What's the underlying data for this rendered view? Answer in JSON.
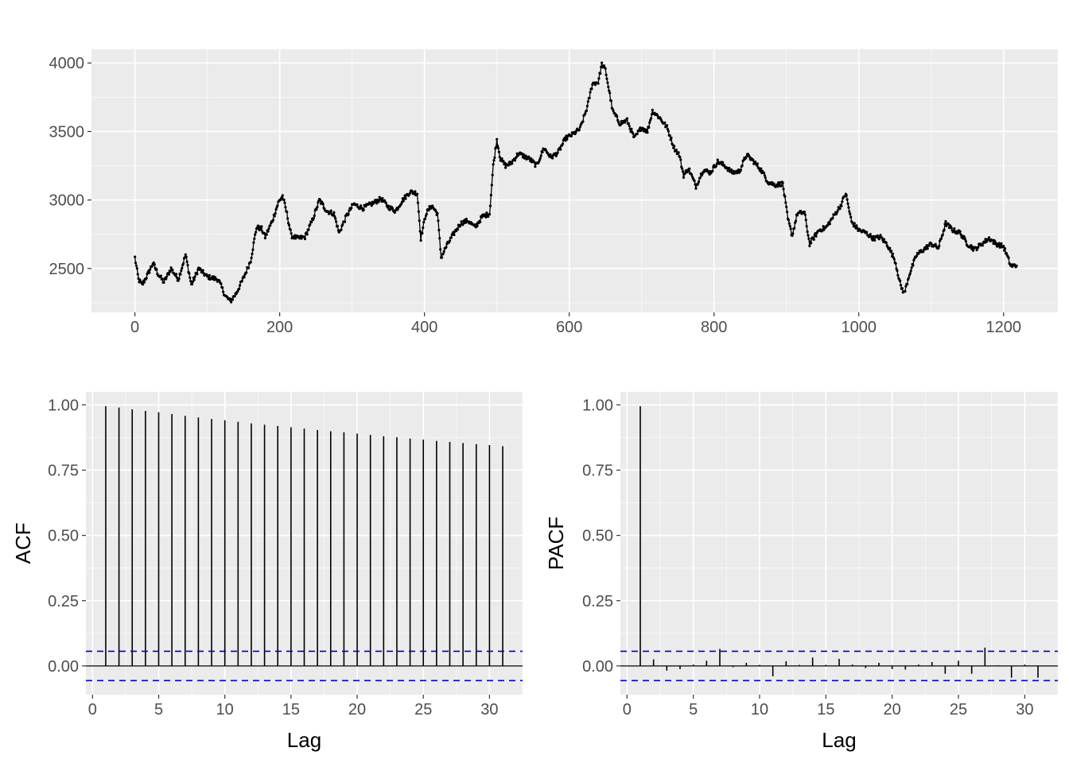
{
  "chart_data": [
    {
      "type": "line",
      "title": "",
      "xlabel": "",
      "ylabel": "",
      "xlim": [
        -60,
        1275
      ],
      "ylim": [
        2180,
        4100
      ],
      "x_ticks": [
        0,
        200,
        400,
        600,
        800,
        1000,
        1200
      ],
      "x_tick_labels": [
        "0",
        "200",
        "400",
        "600",
        "800",
        "1000",
        "1200"
      ],
      "y_ticks": [
        2500,
        3000,
        3500,
        4000
      ],
      "y_tick_labels": [
        "2500",
        "3000",
        "3500",
        "4000"
      ],
      "grid": true,
      "markers": true,
      "series": [
        {
          "anchors": [
            [
              0,
              2580
            ],
            [
              5,
              2420
            ],
            [
              10,
              2380
            ],
            [
              18,
              2460
            ],
            [
              25,
              2540
            ],
            [
              32,
              2460
            ],
            [
              40,
              2400
            ],
            [
              50,
              2500
            ],
            [
              60,
              2420
            ],
            [
              70,
              2600
            ],
            [
              78,
              2380
            ],
            [
              88,
              2500
            ],
            [
              100,
              2440
            ],
            [
              115,
              2420
            ],
            [
              125,
              2300
            ],
            [
              132,
              2260
            ],
            [
              140,
              2320
            ],
            [
              150,
              2430
            ],
            [
              160,
              2560
            ],
            [
              168,
              2800
            ],
            [
              175,
              2790
            ],
            [
              180,
              2730
            ],
            [
              190,
              2850
            ],
            [
              198,
              2980
            ],
            [
              204,
              3030
            ],
            [
              210,
              2900
            ],
            [
              216,
              2740
            ],
            [
              225,
              2720
            ],
            [
              235,
              2730
            ],
            [
              245,
              2850
            ],
            [
              255,
              3000
            ],
            [
              265,
              2920
            ],
            [
              275,
              2900
            ],
            [
              282,
              2760
            ],
            [
              292,
              2880
            ],
            [
              302,
              2970
            ],
            [
              315,
              2940
            ],
            [
              330,
              2980
            ],
            [
              340,
              3010
            ],
            [
              350,
              2950
            ],
            [
              360,
              2920
            ],
            [
              370,
              3000
            ],
            [
              380,
              3060
            ],
            [
              390,
              3050
            ],
            [
              395,
              2720
            ],
            [
              402,
              2900
            ],
            [
              410,
              2960
            ],
            [
              418,
              2900
            ],
            [
              423,
              2580
            ],
            [
              430,
              2660
            ],
            [
              440,
              2750
            ],
            [
              450,
              2830
            ],
            [
              460,
              2850
            ],
            [
              470,
              2800
            ],
            [
              480,
              2880
            ],
            [
              490,
              2900
            ],
            [
              495,
              3250
            ],
            [
              500,
              3440
            ],
            [
              505,
              3300
            ],
            [
              512,
              3250
            ],
            [
              520,
              3270
            ],
            [
              530,
              3340
            ],
            [
              545,
              3300
            ],
            [
              555,
              3250
            ],
            [
              565,
              3380
            ],
            [
              575,
              3310
            ],
            [
              585,
              3350
            ],
            [
              595,
              3450
            ],
            [
              605,
              3480
            ],
            [
              615,
              3520
            ],
            [
              625,
              3680
            ],
            [
              632,
              3850
            ],
            [
              640,
              3860
            ],
            [
              645,
              3990
            ],
            [
              650,
              3950
            ],
            [
              655,
              3800
            ],
            [
              660,
              3650
            ],
            [
              670,
              3560
            ],
            [
              680,
              3580
            ],
            [
              690,
              3450
            ],
            [
              700,
              3530
            ],
            [
              708,
              3500
            ],
            [
              715,
              3650
            ],
            [
              725,
              3600
            ],
            [
              735,
              3530
            ],
            [
              745,
              3380
            ],
            [
              752,
              3330
            ],
            [
              758,
              3180
            ],
            [
              765,
              3230
            ],
            [
              775,
              3100
            ],
            [
              785,
              3220
            ],
            [
              795,
              3200
            ],
            [
              805,
              3280
            ],
            [
              815,
              3250
            ],
            [
              825,
              3200
            ],
            [
              835,
              3210
            ],
            [
              845,
              3330
            ],
            [
              855,
              3280
            ],
            [
              865,
              3220
            ],
            [
              875,
              3130
            ],
            [
              885,
              3110
            ],
            [
              895,
              3120
            ],
            [
              902,
              2860
            ],
            [
              908,
              2740
            ],
            [
              915,
              2900
            ],
            [
              925,
              2910
            ],
            [
              932,
              2680
            ],
            [
              945,
              2780
            ],
            [
              955,
              2800
            ],
            [
              965,
              2880
            ],
            [
              975,
              2960
            ],
            [
              982,
              3050
            ],
            [
              990,
              2840
            ],
            [
              1000,
              2780
            ],
            [
              1010,
              2760
            ],
            [
              1020,
              2720
            ],
            [
              1030,
              2730
            ],
            [
              1040,
              2670
            ],
            [
              1050,
              2560
            ],
            [
              1058,
              2370
            ],
            [
              1063,
              2320
            ],
            [
              1070,
              2460
            ],
            [
              1080,
              2600
            ],
            [
              1090,
              2640
            ],
            [
              1100,
              2680
            ],
            [
              1110,
              2650
            ],
            [
              1120,
              2830
            ],
            [
              1130,
              2780
            ],
            [
              1140,
              2760
            ],
            [
              1150,
              2680
            ],
            [
              1160,
              2640
            ],
            [
              1170,
              2680
            ],
            [
              1180,
              2720
            ],
            [
              1190,
              2680
            ],
            [
              1200,
              2660
            ],
            [
              1210,
              2520
            ],
            [
              1218,
              2520
            ]
          ]
        }
      ]
    },
    {
      "type": "bar",
      "title": "",
      "xlabel": "Lag",
      "ylabel": "ACF",
      "xlim": [
        -0.5,
        32.5
      ],
      "ylim": [
        -0.11,
        1.05
      ],
      "x_ticks": [
        0,
        5,
        10,
        15,
        20,
        25,
        30
      ],
      "x_tick_labels": [
        "0",
        "5",
        "10",
        "15",
        "20",
        "25",
        "30"
      ],
      "y_ticks": [
        0,
        0.25,
        0.5,
        0.75,
        1
      ],
      "y_tick_labels": [
        "0.00",
        "0.25",
        "0.50",
        "0.75",
        "1.00"
      ],
      "confidence_bound": 0.056,
      "confidence_color": "#0000cc",
      "lags": [
        1,
        2,
        3,
        4,
        5,
        6,
        7,
        8,
        9,
        10,
        11,
        12,
        13,
        14,
        15,
        16,
        17,
        18,
        19,
        20,
        21,
        22,
        23,
        24,
        25,
        26,
        27,
        28,
        29,
        30,
        31
      ],
      "values": [
        0.995,
        0.99,
        0.983,
        0.977,
        0.972,
        0.965,
        0.958,
        0.952,
        0.946,
        0.941,
        0.935,
        0.929,
        0.924,
        0.919,
        0.914,
        0.909,
        0.904,
        0.899,
        0.895,
        0.89,
        0.885,
        0.88,
        0.876,
        0.871,
        0.867,
        0.862,
        0.858,
        0.854,
        0.85,
        0.846,
        0.842
      ]
    },
    {
      "type": "bar",
      "title": "",
      "xlabel": "Lag",
      "ylabel": "PACF",
      "xlim": [
        -0.5,
        32.5
      ],
      "ylim": [
        -0.11,
        1.05
      ],
      "x_ticks": [
        0,
        5,
        10,
        15,
        20,
        25,
        30
      ],
      "x_tick_labels": [
        "0",
        "5",
        "10",
        "15",
        "20",
        "25",
        "30"
      ],
      "y_ticks": [
        0,
        0.25,
        0.5,
        0.75,
        1
      ],
      "y_tick_labels": [
        "0.00",
        "0.25",
        "0.50",
        "0.75",
        "1.00"
      ],
      "confidence_bound": 0.056,
      "confidence_color": "#0000cc",
      "lags": [
        1,
        2,
        3,
        4,
        5,
        6,
        7,
        8,
        9,
        10,
        11,
        12,
        13,
        14,
        15,
        16,
        17,
        18,
        19,
        20,
        21,
        22,
        23,
        24,
        25,
        26,
        27,
        28,
        29,
        30,
        31
      ],
      "values": [
        0.995,
        0.025,
        -0.018,
        -0.012,
        0.005,
        0.02,
        0.065,
        -0.005,
        0.012,
        0.004,
        -0.04,
        0.018,
        0.004,
        0.032,
        0.004,
        0.027,
        0.005,
        -0.008,
        0.012,
        -0.012,
        -0.014,
        0.005,
        0.015,
        -0.03,
        0.02,
        -0.03,
        0.07,
        0.002,
        -0.045,
        0.005,
        -0.045
      ]
    }
  ]
}
